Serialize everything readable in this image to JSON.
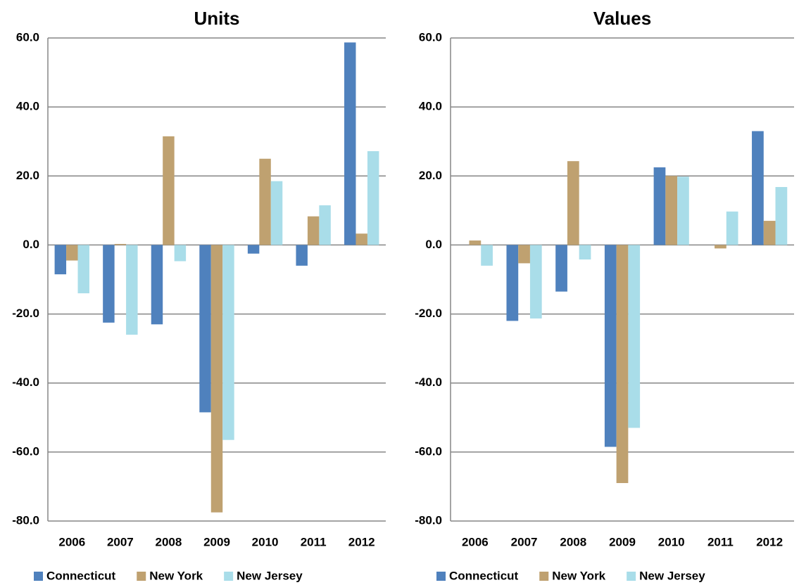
{
  "chart_data": [
    {
      "type": "bar",
      "title": "Units",
      "categories": [
        "2006",
        "2007",
        "2008",
        "2009",
        "2010",
        "2011",
        "2012"
      ],
      "series": [
        {
          "name": "Connecticut",
          "color": "#4f81bd",
          "values": [
            -8.5,
            -22.5,
            -23,
            -48.5,
            -2.5,
            -6,
            58.7
          ]
        },
        {
          "name": "New York",
          "color": "#bfa170",
          "values": [
            -4.5,
            0.3,
            31.5,
            -77.5,
            25,
            8.3,
            3.3
          ]
        },
        {
          "name": "New Jersey",
          "color": "#a9dde9",
          "values": [
            -14,
            -26,
            -4.7,
            -56.5,
            18.5,
            11.5,
            27.2
          ]
        }
      ],
      "ylim": [
        -80,
        60
      ],
      "yticks": [
        {
          "value": -80,
          "label": "-80.0"
        },
        {
          "value": -60,
          "label": "-60.0"
        },
        {
          "value": -40,
          "label": "-40.0"
        },
        {
          "value": -20,
          "label": "-20.0"
        },
        {
          "value": 0,
          "label": "0.0"
        },
        {
          "value": 20,
          "label": "20.0"
        },
        {
          "value": 40,
          "label": "40.0"
        },
        {
          "value": 60,
          "label": "60.0"
        }
      ],
      "grid": true,
      "legend": "bottom"
    },
    {
      "type": "bar",
      "title": "Values",
      "categories": [
        "2006",
        "2007",
        "2008",
        "2009",
        "2010",
        "2011",
        "2012"
      ],
      "series": [
        {
          "name": "Connecticut",
          "color": "#4f81bd",
          "values": [
            0,
            -22,
            -13.5,
            -58.5,
            22.5,
            0,
            33
          ]
        },
        {
          "name": "New York",
          "color": "#bfa170",
          "values": [
            1.3,
            -5.3,
            24.3,
            -69,
            20,
            -1,
            7
          ]
        },
        {
          "name": "New Jersey",
          "color": "#a9dde9",
          "values": [
            -6,
            -21.3,
            -4.2,
            -53,
            19.8,
            9.7,
            16.8
          ]
        }
      ],
      "ylim": [
        -80,
        60
      ],
      "yticks": [
        {
          "value": -80,
          "label": "-80.0"
        },
        {
          "value": -60,
          "label": "-60.0"
        },
        {
          "value": -40,
          "label": "-40.0"
        },
        {
          "value": -20,
          "label": "-20.0"
        },
        {
          "value": 0,
          "label": "0.0"
        },
        {
          "value": 20,
          "label": "20.0"
        },
        {
          "value": 40,
          "label": "40.0"
        },
        {
          "value": 60,
          "label": "60.0"
        }
      ],
      "grid": true,
      "legend": "bottom"
    }
  ]
}
